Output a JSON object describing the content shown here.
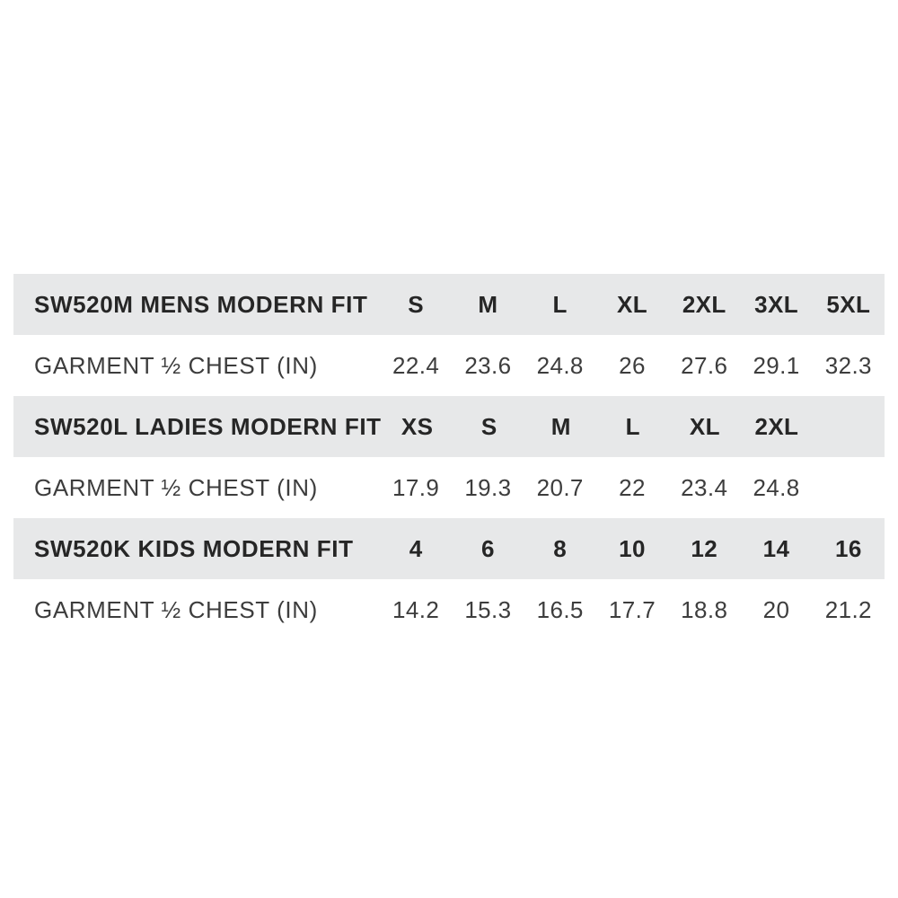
{
  "styles": {
    "page_background": "#ffffff",
    "header_row_background": "#e7e8e9",
    "header_text_color": "#262626",
    "value_text_color": "#3d3d3d"
  },
  "chart_data": {
    "type": "table",
    "layout": "three stacked size-chart sections; each section has a shaded header row (product code + size labels) and a white data row (garment half-chest measurements in inches)",
    "sections": [
      {
        "name": "SW520M MENS MODERN FIT",
        "size_labels": [
          "S",
          "M",
          "L",
          "XL",
          "2XL",
          "3XL",
          "5XL"
        ],
        "measurement_label": "GARMENT ½ CHEST (IN)",
        "measurements_in": [
          22.4,
          23.6,
          24.8,
          26,
          27.6,
          29.1,
          32.3
        ]
      },
      {
        "name": "SW520L LADIES MODERN FIT",
        "size_labels": [
          "XS",
          "S",
          "M",
          "L",
          "XL",
          "2XL"
        ],
        "measurement_label": "GARMENT ½ CHEST (IN)",
        "measurements_in": [
          17.9,
          19.3,
          20.7,
          22,
          23.4,
          24.8
        ]
      },
      {
        "name": "SW520K KIDS MODERN FIT",
        "size_labels": [
          "4",
          "6",
          "8",
          "10",
          "12",
          "14",
          "16"
        ],
        "measurement_label": "GARMENT ½ CHEST (IN)",
        "measurements_in": [
          14.2,
          15.3,
          16.5,
          17.7,
          18.8,
          20,
          21.2
        ]
      }
    ]
  }
}
